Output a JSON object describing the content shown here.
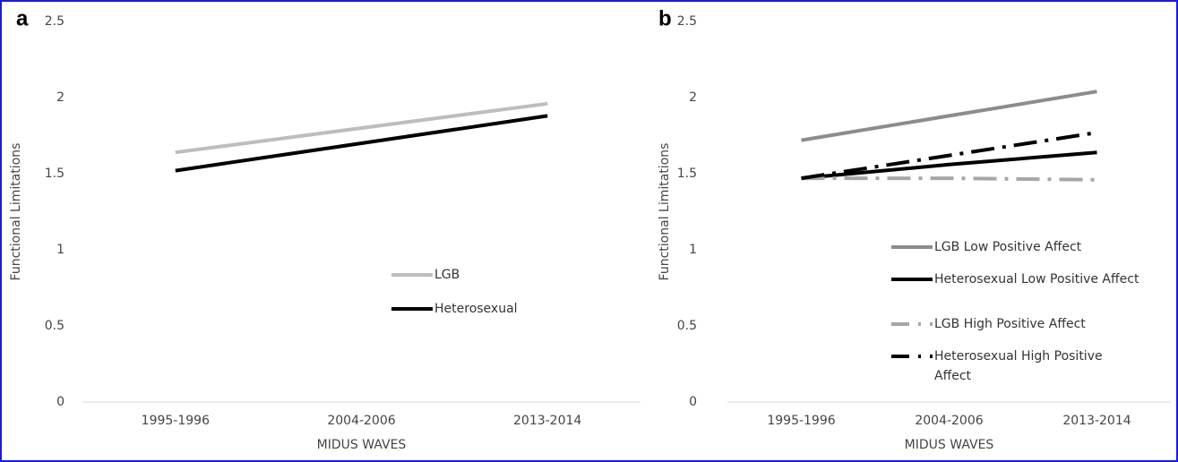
{
  "chart_data": [
    {
      "type": "line",
      "panel": "a",
      "y_label": "Functional Limitations",
      "x_label": "MIDUS WAVES",
      "categories": [
        "1995-1996",
        "2004-2006",
        "2013-2014"
      ],
      "ylim": [
        0,
        2.5
      ],
      "yticks": [
        0,
        0.5,
        1,
        1.5,
        2,
        2.5
      ],
      "series": [
        {
          "name": "LGB",
          "color": "#bdbdbd",
          "style": "solid",
          "values": [
            1.64,
            1.8,
            1.96
          ]
        },
        {
          "name": "Heterosexual",
          "color": "#000000",
          "style": "solid",
          "values": [
            1.52,
            1.7,
            1.88
          ]
        }
      ]
    },
    {
      "type": "line",
      "panel": "b",
      "y_label": "Functional Limitations",
      "x_label": "MIDUS WAVES",
      "categories": [
        "1995-1996",
        "2004-2006",
        "2013-2014"
      ],
      "ylim": [
        0,
        2.5
      ],
      "yticks": [
        0,
        0.5,
        1,
        1.5,
        2,
        2.5
      ],
      "series": [
        {
          "name": "LGB Low Positive Affect",
          "color": "#8c8c8c",
          "style": "solid",
          "values": [
            1.72,
            1.88,
            2.04
          ]
        },
        {
          "name": "Heterosexual Low Positive Affect",
          "color": "#000000",
          "style": "solid",
          "values": [
            1.47,
            1.56,
            1.64
          ]
        },
        {
          "name": "LGB High Positive Affect",
          "color": "#a6a6a6",
          "style": "dashdot",
          "values": [
            1.47,
            1.47,
            1.46
          ]
        },
        {
          "name": "Heterosexual High Positive Affect",
          "color": "#000000",
          "style": "dashdot",
          "values": [
            1.47,
            1.62,
            1.77
          ]
        }
      ]
    }
  ]
}
